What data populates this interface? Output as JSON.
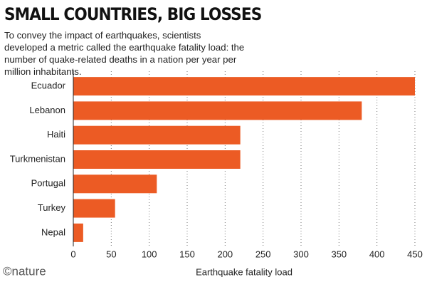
{
  "chart_data": {
    "type": "bar",
    "orientation": "horizontal",
    "title": "SMALL COUNTRIES, BIG LOSSES",
    "subtitle": "To convey the impact of earthquakes, scientists developed a metric called the earthquake fatality load: the number of quake-related deaths in a nation per year per million inhabitants.",
    "x_label": "Earthquake fatality load",
    "source": "©nature",
    "categories": [
      "Ecuador",
      "Lebanon",
      "Haiti",
      "Turkmenistan",
      "Portugal",
      "Turkey",
      "Nepal"
    ],
    "values": [
      450,
      380,
      220,
      220,
      110,
      55,
      13
    ],
    "color": "#ec5b24",
    "xlim": [
      0,
      450
    ],
    "xticks": [
      0,
      50,
      100,
      150,
      200,
      250,
      300,
      350,
      400,
      450
    ],
    "grid": true
  }
}
